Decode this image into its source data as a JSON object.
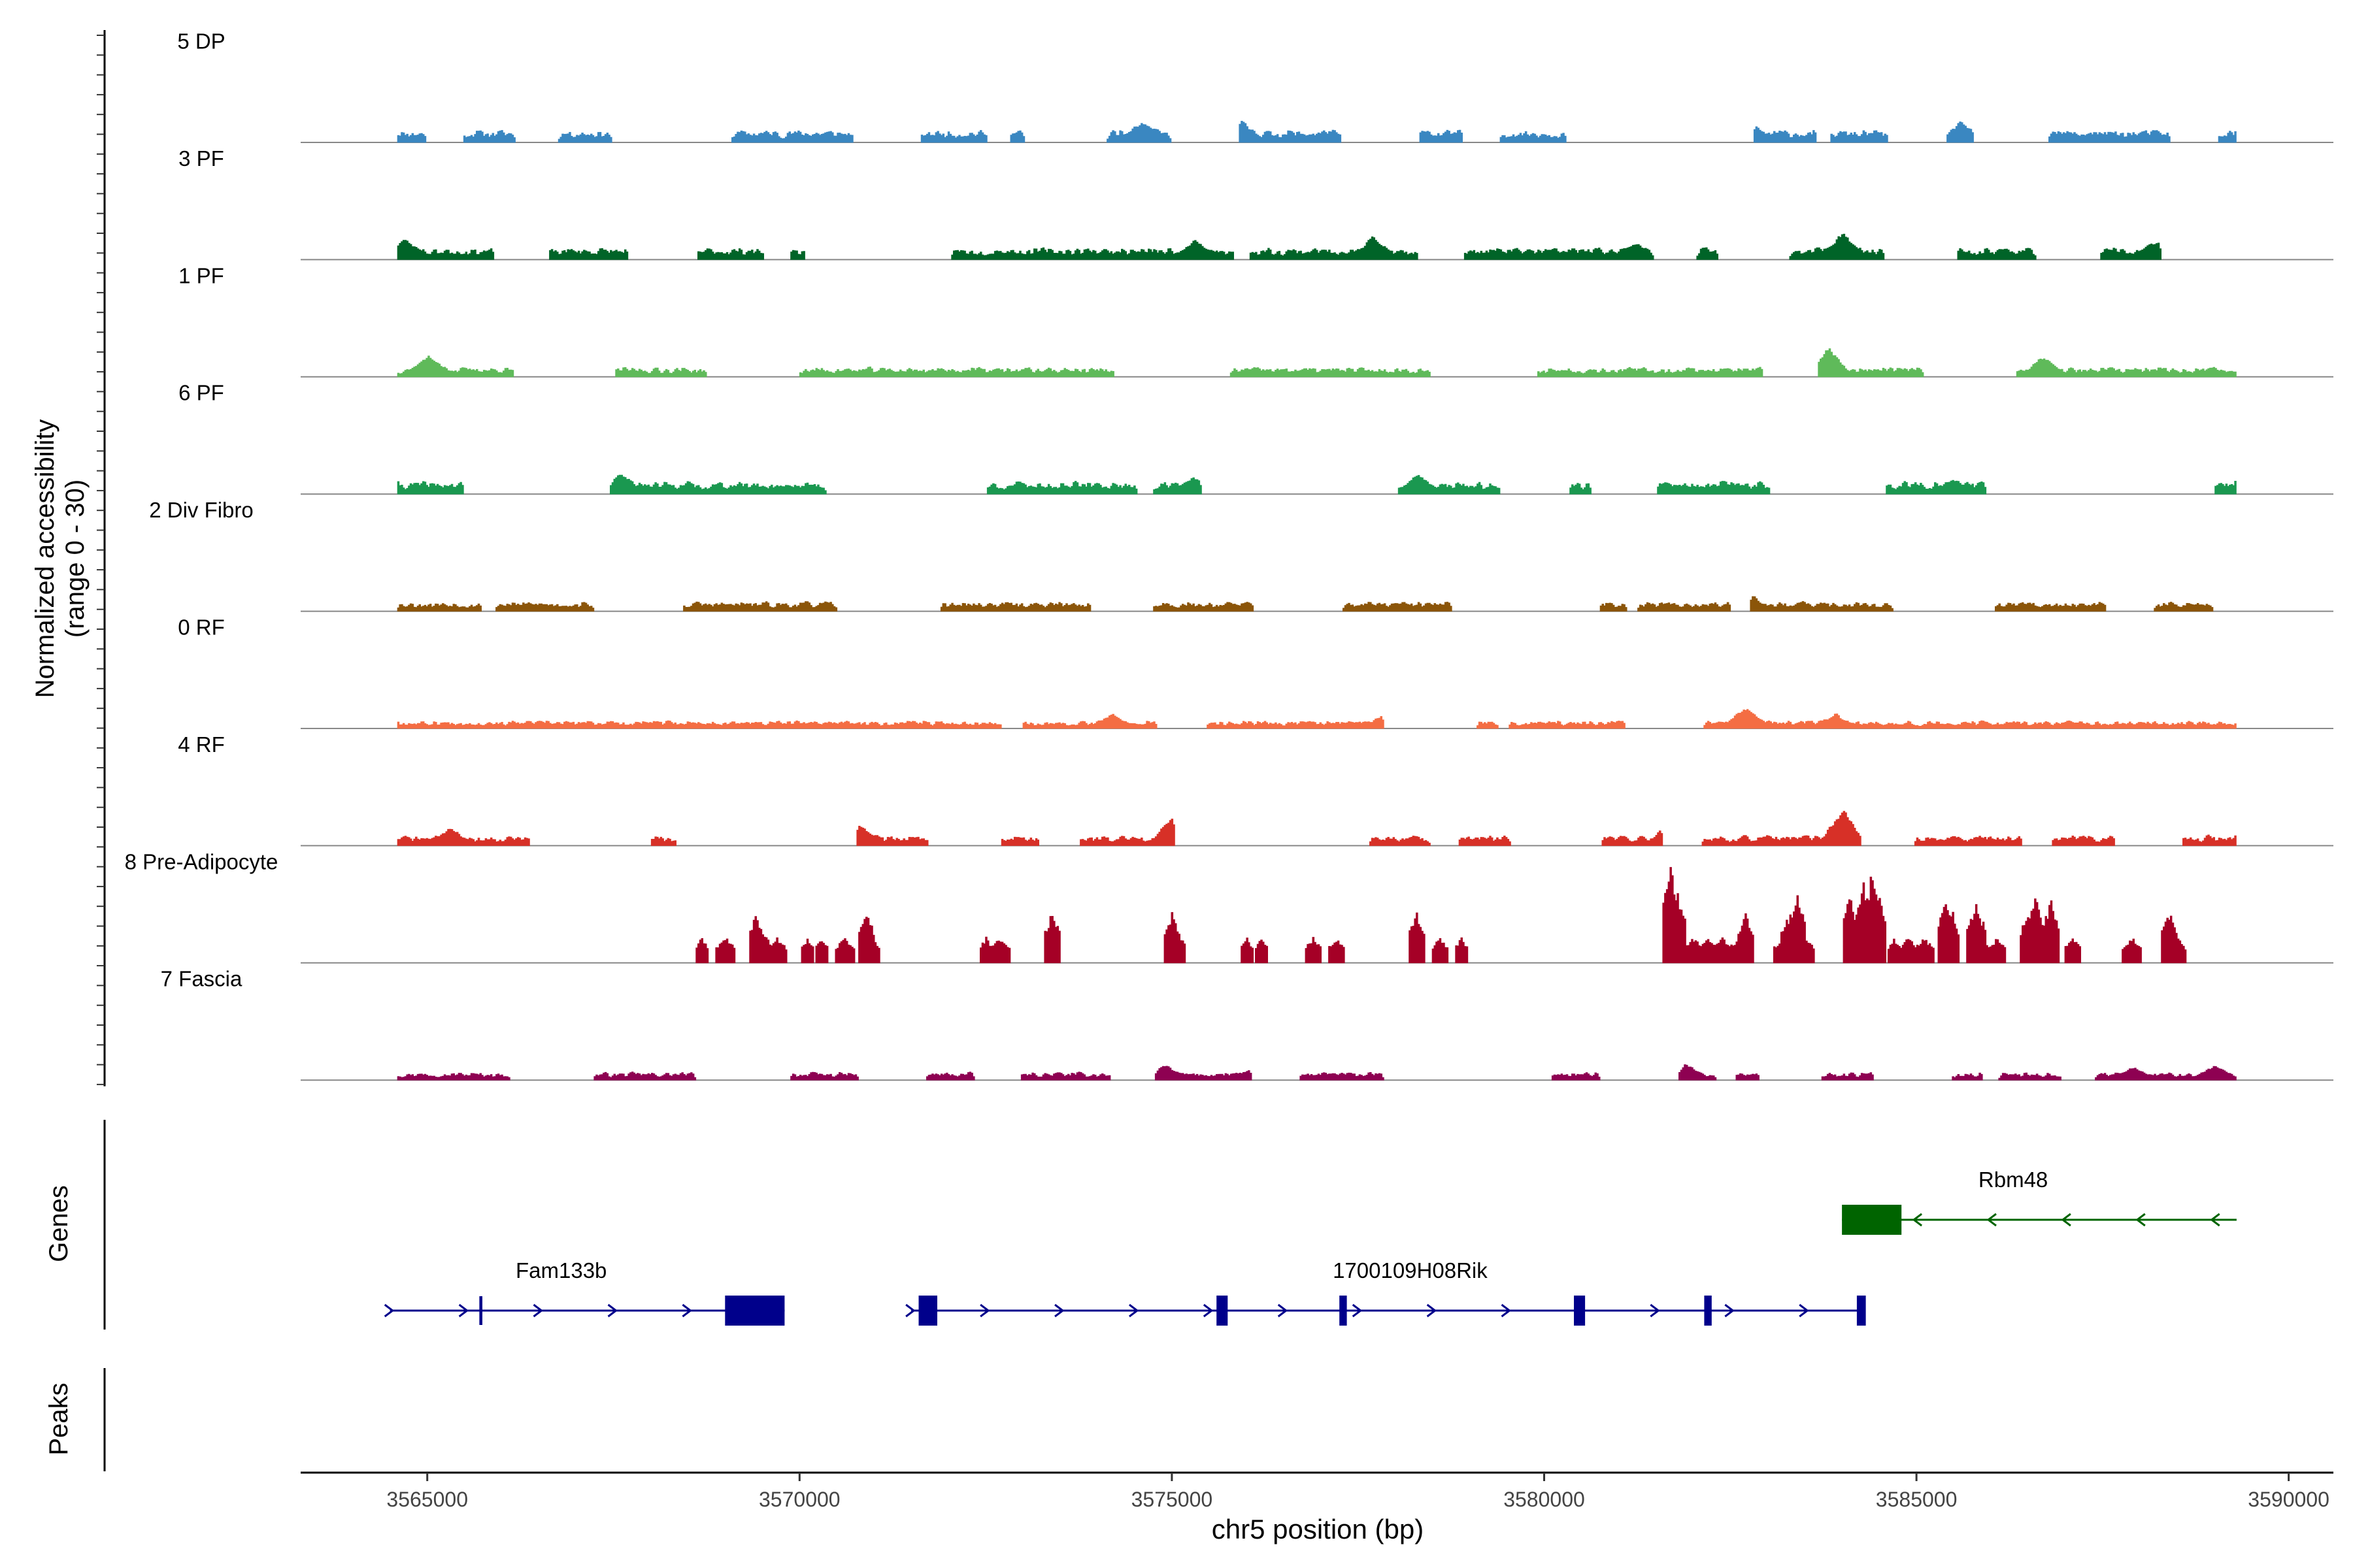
{
  "chart_data": {
    "type": "area",
    "title": "",
    "xlabel": "chr5 position (bp)",
    "ylabel": [
      "Normalized accessibility",
      "(range 0 - 30)"
    ],
    "genes_label": "Genes",
    "peaks_label": "Peaks",
    "xlim": [
      3563300,
      3590600
    ],
    "ylim": [
      0,
      30
    ],
    "xticks": [
      3565000,
      3570000,
      3575000,
      3580000,
      3585000,
      3590000
    ],
    "xtick_labels": [
      "3565000",
      "3570000",
      "3575000",
      "3580000",
      "3585000",
      "3590000"
    ],
    "signal_range": [
      3564600,
      3589300
    ],
    "tracks": [
      {
        "name": "5 DP",
        "color": "#3A87C1",
        "seed": 11,
        "amp": 4.2,
        "density": 0.55,
        "style": "fine",
        "hotspots": [
          [
            3568600,
            9
          ],
          [
            3574600,
            7.5
          ],
          [
            3575900,
            8
          ],
          [
            3578200,
            7.5
          ],
          [
            3582700,
            10
          ],
          [
            3585600,
            7
          ]
        ]
      },
      {
        "name": "3 PF",
        "color": "#006428",
        "seed": 23,
        "amp": 4.0,
        "density": 0.7,
        "style": "fine",
        "hotspots": [
          [
            3564700,
            7
          ],
          [
            3575300,
            6.5
          ],
          [
            3577700,
            8
          ],
          [
            3581200,
            6
          ],
          [
            3584000,
            9.5
          ],
          [
            3588200,
            6.5
          ]
        ]
      },
      {
        "name": "1 PF",
        "color": "#5FBA5A",
        "seed": 37,
        "amp": 3.2,
        "density": 0.7,
        "style": "fine",
        "hotspots": [
          [
            3565000,
            8
          ],
          [
            3575400,
            9
          ],
          [
            3583800,
            10
          ],
          [
            3586700,
            7
          ],
          [
            3583300,
            6
          ]
        ]
      },
      {
        "name": "6 PF",
        "color": "#1A9850",
        "seed": 41,
        "amp": 4.2,
        "density": 0.45,
        "style": "fine",
        "hotspots": [
          [
            3567600,
            7
          ],
          [
            3575300,
            6
          ],
          [
            3578300,
            6.5
          ],
          [
            3583700,
            9.5
          ],
          [
            3585500,
            5
          ]
        ]
      },
      {
        "name": "2 Div Fibro",
        "color": "#8B5509",
        "seed": 53,
        "amp": 3.2,
        "density": 0.6,
        "style": "fine",
        "hotspots": [
          [
            3571400,
            7
          ],
          [
            3576700,
            6
          ],
          [
            3582700,
            7.5
          ],
          [
            3585800,
            5
          ]
        ]
      },
      {
        "name": "0 RF",
        "color": "#F46D43",
        "seed": 67,
        "amp": 2.6,
        "density": 0.9,
        "style": "fine",
        "hotspots": [
          [
            3574200,
            5
          ],
          [
            3577900,
            6
          ],
          [
            3582700,
            7
          ],
          [
            3583900,
            5
          ]
        ]
      },
      {
        "name": "4 RF",
        "color": "#D73027",
        "seed": 71,
        "amp": 3.4,
        "density": 0.62,
        "style": "fine",
        "hotspots": [
          [
            3565300,
            6
          ],
          [
            3570800,
            7.5
          ],
          [
            3575000,
            10
          ],
          [
            3576500,
            7
          ],
          [
            3581700,
            9
          ],
          [
            3584000,
            12.5
          ],
          [
            3588400,
            6
          ]
        ]
      },
      {
        "name": "8 Pre-Adipocyte",
        "color": "#A50026",
        "seed": 89,
        "amp": 0,
        "density": 0,
        "style": "spiky",
        "spikes": [
          [
            3568700,
            8
          ],
          [
            3569000,
            8
          ],
          [
            3569400,
            16
          ],
          [
            3569500,
            10
          ],
          [
            3569700,
            8
          ],
          [
            3570100,
            8
          ],
          [
            3570300,
            8
          ],
          [
            3570600,
            8
          ],
          [
            3570900,
            16
          ],
          [
            3571000,
            8
          ],
          [
            3572500,
            8
          ],
          [
            3572700,
            8
          ],
          [
            3573400,
            16
          ],
          [
            3575000,
            16
          ],
          [
            3575100,
            9
          ],
          [
            3576000,
            8
          ],
          [
            3576200,
            8
          ],
          [
            3576900,
            8
          ],
          [
            3577200,
            8
          ],
          [
            3578300,
            16
          ],
          [
            3578600,
            8
          ],
          [
            3578900,
            8
          ],
          [
            3581700,
            30
          ],
          [
            3581800,
            22
          ],
          [
            3582000,
            8
          ],
          [
            3582200,
            8
          ],
          [
            3582400,
            8
          ],
          [
            3582600,
            8
          ],
          [
            3582700,
            16
          ],
          [
            3583200,
            8
          ],
          [
            3583300,
            16
          ],
          [
            3583400,
            22
          ],
          [
            3583500,
            8
          ],
          [
            3584100,
            22
          ],
          [
            3584300,
            26
          ],
          [
            3584400,
            30
          ],
          [
            3584500,
            22
          ],
          [
            3584700,
            8
          ],
          [
            3584900,
            8
          ],
          [
            3585100,
            8
          ],
          [
            3585400,
            20
          ],
          [
            3585500,
            16
          ],
          [
            3585800,
            18
          ],
          [
            3585900,
            8
          ],
          [
            3586100,
            8
          ],
          [
            3586500,
            16
          ],
          [
            3586600,
            22
          ],
          [
            3586800,
            20
          ],
          [
            3587100,
            8
          ],
          [
            3587900,
            8
          ],
          [
            3588400,
            16
          ],
          [
            3588500,
            8
          ]
        ]
      },
      {
        "name": "7 Fascia",
        "color": "#8E0152",
        "seed": 97,
        "amp": 2.6,
        "density": 0.55,
        "style": "fine",
        "hotspots": [
          [
            3574900,
            5
          ],
          [
            3576100,
            4.5
          ],
          [
            3579000,
            4
          ],
          [
            3581900,
            5.5
          ],
          [
            3587900,
            4.5
          ],
          [
            3589000,
            5
          ]
        ]
      }
    ],
    "genes": [
      {
        "name": "Rbm48",
        "strand": "-",
        "color": "#006400",
        "row": 1,
        "start": 3584000,
        "end": 3589300,
        "label_x": 3586300,
        "thick": [
          [
            3584000,
            3584800
          ]
        ],
        "thin": [],
        "arrows": [
          3585000,
          3586000,
          3587000,
          3588000,
          3589000
        ]
      },
      {
        "name": "Fam133b",
        "strand": "+",
        "color": "#00008B",
        "row": 2,
        "start": 3564500,
        "end": 3569800,
        "label_x": 3566800,
        "thick": [
          [
            3569000,
            3569800
          ]
        ],
        "thin": [
          [
            3565700,
            3565740
          ]
        ],
        "arrows": [
          3564500,
          3565500,
          3566500,
          3567500,
          3568500
        ]
      },
      {
        "name": "1700109H08Rik",
        "strand": "+",
        "color": "#00008B",
        "row": 2,
        "start": 3571500,
        "end": 3584300,
        "label_x": 3578200,
        "thick": [
          [
            3571600,
            3571850
          ],
          [
            3575600,
            3575750
          ],
          [
            3577250,
            3577350
          ],
          [
            3580400,
            3580550
          ],
          [
            3582150,
            3582250
          ],
          [
            3584200,
            3584320
          ]
        ],
        "thin": [],
        "arrows": [
          3571500,
          3572500,
          3573500,
          3574500,
          3575500,
          3576500,
          3577500,
          3578500,
          3579500,
          3580500,
          3581500,
          3582500,
          3583500
        ]
      }
    ]
  }
}
